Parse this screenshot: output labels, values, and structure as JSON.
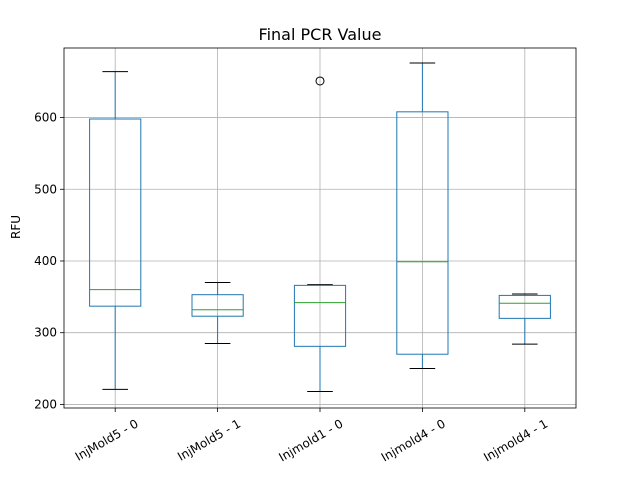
{
  "chart_data": {
    "type": "box",
    "title": "Final PCR Value",
    "ylabel": "RFU",
    "xlabel": "",
    "ylim": [
      195,
      697
    ],
    "yticks": [
      200,
      300,
      400,
      500,
      600
    ],
    "grid": true,
    "categories": [
      "InjMold5 - 0",
      "InjMold5 - 1",
      "Injmold1 - 0",
      "Injmold4 - 0",
      "Injmold4 - 1"
    ],
    "boxes": [
      {
        "whisker_low": 221,
        "q1": 337,
        "median": 360,
        "q3": 598,
        "whisker_high": 664,
        "outliers": []
      },
      {
        "whisker_low": 285,
        "q1": 323,
        "median": 332,
        "q3": 353,
        "whisker_high": 370,
        "outliers": []
      },
      {
        "whisker_low": 218,
        "q1": 281,
        "median": 342,
        "q3": 366,
        "whisker_high": 367,
        "outliers": [
          651
        ]
      },
      {
        "whisker_low": 250,
        "q1": 270,
        "median": 399,
        "q3": 608,
        "whisker_high": 676,
        "outliers": []
      },
      {
        "whisker_low": 284,
        "q1": 320,
        "median": 341,
        "q3": 352,
        "whisker_high": 354,
        "outliers": []
      }
    ],
    "colors": {
      "box": "#1f77b4",
      "median": "#2ca02c",
      "whisker": "#1f77b4",
      "cap": "#000000",
      "grid": "#b0b0b0",
      "axis": "#000000"
    }
  }
}
